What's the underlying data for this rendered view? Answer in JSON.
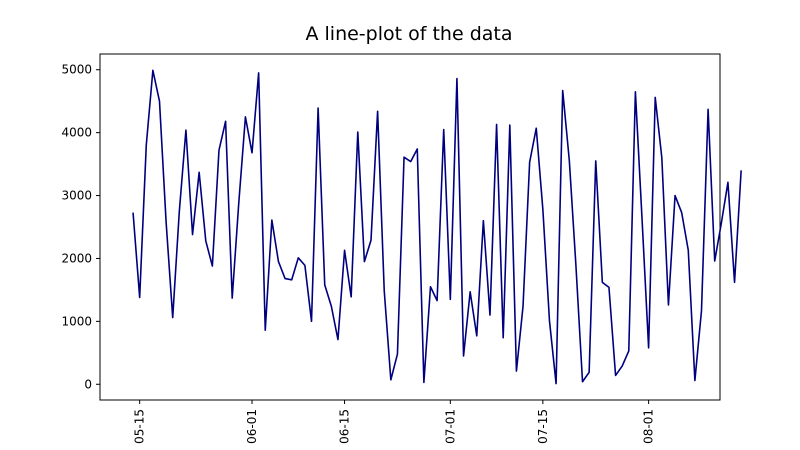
{
  "chart_data": {
    "type": "line",
    "title": "A line-plot of the data",
    "xlabel": "",
    "ylabel": "",
    "line_color": "#00007f",
    "x_start": "05-09",
    "x_range_days": [
      0,
      93.8
    ],
    "ylim": [
      -250,
      5250
    ],
    "y_ticks": [
      0,
      1000,
      2000,
      3000,
      4000,
      5000
    ],
    "y_tick_labels": [
      "0",
      "1000",
      "2000",
      "3000",
      "4000",
      "5000"
    ],
    "x_ticks_day": [
      6,
      23,
      37,
      53,
      67,
      83
    ],
    "x_tick_labels": [
      "05-15",
      "06-01",
      "06-15",
      "07-01",
      "07-15",
      "08-01"
    ],
    "grid": false,
    "legend": "none",
    "values": [
      2730,
      1380,
      3800,
      4990,
      4500,
      2580,
      1060,
      2750,
      4040,
      2380,
      3370,
      2280,
      1880,
      3720,
      4180,
      1370,
      2890,
      4250,
      3680,
      4950,
      860,
      2610,
      1950,
      1680,
      1660,
      2010,
      1890,
      1000,
      4390,
      1580,
      1240,
      710,
      2130,
      1390,
      4010,
      1950,
      2290,
      4340,
      1490,
      70,
      480,
      3610,
      3540,
      3740,
      30,
      1550,
      1330,
      4050,
      1350,
      4860,
      450,
      1470,
      770,
      2600,
      1100,
      4130,
      740,
      4120,
      210,
      1240,
      3530,
      4070,
      2780,
      1010,
      10,
      4670,
      3560,
      1890,
      40,
      190,
      3550,
      1620,
      1540,
      140,
      290,
      530,
      4650,
      2640,
      580,
      4560,
      3600,
      1260,
      3000,
      2730,
      2130,
      60,
      1170,
      4370,
      1960,
      2560,
      3210,
      1620,
      3400
    ]
  }
}
